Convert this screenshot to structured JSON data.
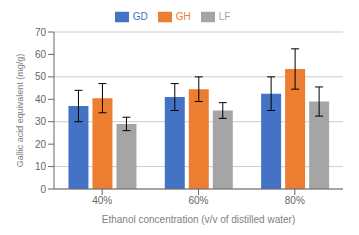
{
  "chart_data": {
    "type": "bar",
    "categories": [
      "40%",
      "60%",
      "80%"
    ],
    "series": [
      {
        "name": "GD",
        "color": "#4472C4",
        "values": [
          37.0,
          41.0,
          42.5
        ],
        "errors": [
          7.0,
          6.0,
          7.5
        ]
      },
      {
        "name": "GH",
        "color": "#ED7D31",
        "values": [
          40.5,
          44.5,
          53.5
        ],
        "errors": [
          6.5,
          5.5,
          9.0
        ]
      },
      {
        "name": "LF",
        "color": "#A5A5A5",
        "values": [
          29.0,
          35.0,
          39.0
        ],
        "errors": [
          3.0,
          3.5,
          6.5
        ]
      }
    ],
    "ylabel": "Gallic acid equivalent (mg/g)",
    "xlabel": "Ethanol concentration (v/v of distilled water)",
    "ylim": [
      0,
      70
    ],
    "yticks": [
      0,
      10,
      20,
      30,
      40,
      50,
      60,
      70
    ],
    "grid": true,
    "legend": "top"
  }
}
